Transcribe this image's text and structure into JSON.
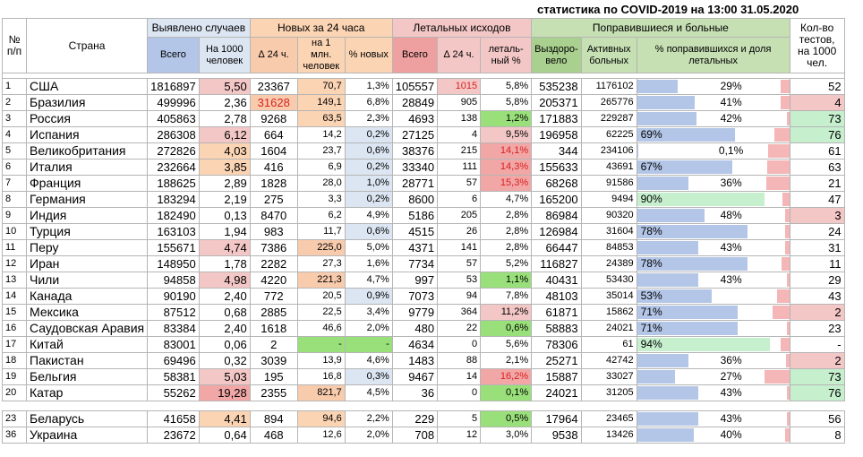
{
  "caption": "статистика по COVID-2019 на 13:00 31.05.2020",
  "headers": {
    "num": "№ п/п",
    "country": "Страна",
    "detected": "Выявлено случаев",
    "new24": "Новых за 24 часа",
    "deaths": "Летальных исходов",
    "recovered": "Поправившиеся и больные",
    "tests": "Кол-во тестов, на 1000 чел.",
    "total": "Всего",
    "per1000": "На 1000 человек",
    "d24": "∆ 24 ч.",
    "per1m": "на 1 млн. человек",
    "pctnew": "% новых",
    "dtotal": "Всего",
    "dd24": "∆ 24 ч.",
    "lethal": "леталь-ный %",
    "recov": "Выздоро-вело",
    "active": "Активных больных",
    "share": "% поправившихся и доля летальных"
  },
  "rows": [
    {
      "n": "1",
      "country": "США",
      "total": "1816897",
      "per1000": "5,50",
      "d24": "23367",
      "per1m": "70,7",
      "pctnew": "1,3%",
      "deaths": "105557",
      "dd24": "1015",
      "lethal": "5,8%",
      "recov": "535238",
      "active": "1176102",
      "share": "29%",
      "sharev": 29,
      "lethv": 5.8,
      "tests": "52"
    },
    {
      "n": "2",
      "country": "Бразилия",
      "total": "499996",
      "per1000": "2,36",
      "d24": "31628",
      "per1m": "149,1",
      "pctnew": "6,8%",
      "deaths": "28849",
      "dd24": "905",
      "lethal": "5,8%",
      "recov": "205371",
      "active": "265776",
      "share": "41%",
      "sharev": 41,
      "lethv": 5.8,
      "tests": "4"
    },
    {
      "n": "3",
      "country": "Россия",
      "total": "405863",
      "per1000": "2,78",
      "d24": "9268",
      "per1m": "63,5",
      "pctnew": "2,3%",
      "deaths": "4693",
      "dd24": "138",
      "lethal": "1,2%",
      "recov": "171883",
      "active": "229287",
      "share": "42%",
      "sharev": 42,
      "lethv": 1.2,
      "tests": "73"
    },
    {
      "n": "4",
      "country": "Испания",
      "total": "286308",
      "per1000": "6,12",
      "d24": "664",
      "per1m": "14,2",
      "pctnew": "0,2%",
      "deaths": "27125",
      "dd24": "4",
      "lethal": "9,5%",
      "recov": "196958",
      "active": "62225",
      "share": "69%",
      "sharev": 69,
      "lethv": 9.5,
      "tests": "76"
    },
    {
      "n": "5",
      "country": "Великобритания",
      "total": "272826",
      "per1000": "4,03",
      "d24": "1604",
      "per1m": "23,7",
      "pctnew": "0,6%",
      "deaths": "38376",
      "dd24": "215",
      "lethal": "14,1%",
      "recov": "344",
      "active": "234106",
      "share": "0,1%",
      "sharev": 0.1,
      "lethv": 14.1,
      "tests": "61"
    },
    {
      "n": "6",
      "country": "Италия",
      "total": "232664",
      "per1000": "3,85",
      "d24": "416",
      "per1m": "6,9",
      "pctnew": "0,2%",
      "deaths": "33340",
      "dd24": "111",
      "lethal": "14,3%",
      "recov": "155633",
      "active": "43691",
      "share": "67%",
      "sharev": 67,
      "lethv": 14.3,
      "tests": "63"
    },
    {
      "n": "7",
      "country": "Франция",
      "total": "188625",
      "per1000": "2,89",
      "d24": "1828",
      "per1m": "28,0",
      "pctnew": "1,0%",
      "deaths": "28771",
      "dd24": "57",
      "lethal": "15,3%",
      "recov": "68268",
      "active": "91586",
      "share": "36%",
      "sharev": 36,
      "lethv": 15.3,
      "tests": "21"
    },
    {
      "n": "8",
      "country": "Германия",
      "total": "183294",
      "per1000": "2,19",
      "d24": "275",
      "per1m": "3,3",
      "pctnew": "0,2%",
      "deaths": "8600",
      "dd24": "6",
      "lethal": "4,7%",
      "recov": "165200",
      "active": "9494",
      "share": "90%",
      "sharev": 90,
      "lethv": 4.7,
      "tests": "47"
    },
    {
      "n": "9",
      "country": "Индия",
      "total": "182490",
      "per1000": "0,13",
      "d24": "8470",
      "per1m": "6,2",
      "pctnew": "4,9%",
      "deaths": "5186",
      "dd24": "205",
      "lethal": "2,8%",
      "recov": "86984",
      "active": "90320",
      "share": "48%",
      "sharev": 48,
      "lethv": 2.8,
      "tests": "3"
    },
    {
      "n": "10",
      "country": "Турция",
      "total": "163103",
      "per1000": "1,94",
      "d24": "983",
      "per1m": "11,7",
      "pctnew": "0,6%",
      "deaths": "4515",
      "dd24": "26",
      "lethal": "2,8%",
      "recov": "126984",
      "active": "31604",
      "share": "78%",
      "sharev": 78,
      "lethv": 2.8,
      "tests": "24"
    },
    {
      "n": "11",
      "country": "Перу",
      "total": "155671",
      "per1000": "4,74",
      "d24": "7386",
      "per1m": "225,0",
      "pctnew": "5,0%",
      "deaths": "4371",
      "dd24": "141",
      "lethal": "2,8%",
      "recov": "66447",
      "active": "84853",
      "share": "43%",
      "sharev": 43,
      "lethv": 2.8,
      "tests": "31"
    },
    {
      "n": "12",
      "country": "Иран",
      "total": "148950",
      "per1000": "1,78",
      "d24": "2282",
      "per1m": "27,3",
      "pctnew": "1,6%",
      "deaths": "7734",
      "dd24": "57",
      "lethal": "5,2%",
      "recov": "116827",
      "active": "24389",
      "share": "78%",
      "sharev": 78,
      "lethv": 5.2,
      "tests": "11"
    },
    {
      "n": "13",
      "country": "Чили",
      "total": "94858",
      "per1000": "4,98",
      "d24": "4220",
      "per1m": "221,3",
      "pctnew": "4,7%",
      "deaths": "997",
      "dd24": "53",
      "lethal": "1,1%",
      "recov": "40431",
      "active": "53430",
      "share": "43%",
      "sharev": 43,
      "lethv": 1.1,
      "tests": "29"
    },
    {
      "n": "14",
      "country": "Канада",
      "total": "90190",
      "per1000": "2,40",
      "d24": "772",
      "per1m": "20,5",
      "pctnew": "0,9%",
      "deaths": "7073",
      "dd24": "94",
      "lethal": "7,8%",
      "recov": "48103",
      "active": "35014",
      "share": "53%",
      "sharev": 53,
      "lethv": 7.8,
      "tests": "43"
    },
    {
      "n": "15",
      "country": "Мексика",
      "total": "87512",
      "per1000": "0,68",
      "d24": "2885",
      "per1m": "22,5",
      "pctnew": "3,4%",
      "deaths": "9779",
      "dd24": "364",
      "lethal": "11,2%",
      "recov": "61871",
      "active": "15862",
      "share": "71%",
      "sharev": 71,
      "lethv": 11.2,
      "tests": "2"
    },
    {
      "n": "16",
      "country": "Саудовская Аравия",
      "total": "83384",
      "per1000": "2,40",
      "d24": "1618",
      "per1m": "46,6",
      "pctnew": "2,0%",
      "deaths": "480",
      "dd24": "22",
      "lethal": "0,6%",
      "recov": "58883",
      "active": "24021",
      "share": "71%",
      "sharev": 71,
      "lethv": 0.6,
      "tests": "23"
    },
    {
      "n": "17",
      "country": "Китай",
      "total": "83001",
      "per1000": "0,06",
      "d24": "2",
      "per1m": "-",
      "pctnew": "-",
      "deaths": "4634",
      "dd24": "0",
      "lethal": "5,6%",
      "recov": "78306",
      "active": "61",
      "share": "94%",
      "sharev": 94,
      "lethv": 5.6,
      "tests": "-"
    },
    {
      "n": "18",
      "country": "Пакистан",
      "total": "69496",
      "per1000": "0,32",
      "d24": "3039",
      "per1m": "13,9",
      "pctnew": "4,6%",
      "deaths": "1483",
      "dd24": "88",
      "lethal": "2,1%",
      "recov": "25271",
      "active": "42742",
      "share": "36%",
      "sharev": 36,
      "lethv": 2.1,
      "tests": "2"
    },
    {
      "n": "19",
      "country": "Бельгия",
      "total": "58381",
      "per1000": "5,03",
      "d24": "195",
      "per1m": "16,8",
      "pctnew": "0,3%",
      "deaths": "9467",
      "dd24": "14",
      "lethal": "16,2%",
      "recov": "15887",
      "active": "33027",
      "share": "27%",
      "sharev": 27,
      "lethv": 16.2,
      "tests": "73"
    },
    {
      "n": "20",
      "country": "Катар",
      "total": "55262",
      "per1000": "19,28",
      "d24": "2355",
      "per1m": "821,7",
      "pctnew": "4,5%",
      "deaths": "36",
      "dd24": "0",
      "lethal": "0,1%",
      "recov": "24021",
      "active": "31205",
      "share": "43%",
      "sharev": 43,
      "lethv": 0.1,
      "tests": "76"
    }
  ],
  "extra": [
    {
      "n": "23",
      "country": "Беларусь",
      "total": "41658",
      "per1000": "4,41",
      "d24": "894",
      "per1m": "94,6",
      "pctnew": "2,2%",
      "deaths": "229",
      "dd24": "5",
      "lethal": "0,5%",
      "recov": "17964",
      "active": "23465",
      "share": "43%",
      "sharev": 43,
      "lethv": 0.5,
      "tests": "56"
    },
    {
      "n": "36",
      "country": "Украина",
      "total": "23672",
      "per1000": "0,64",
      "d24": "468",
      "per1m": "12,6",
      "pctnew": "2,0%",
      "deaths": "708",
      "dd24": "12",
      "lethal": "3,0%",
      "recov": "9538",
      "active": "13426",
      "share": "40%",
      "sharev": 40,
      "lethv": 3.0,
      "tests": "8"
    }
  ],
  "colors": {
    "bar": "#b4c6e7",
    "barhi": "#c6efce",
    "leth": "#f4b6b6"
  }
}
